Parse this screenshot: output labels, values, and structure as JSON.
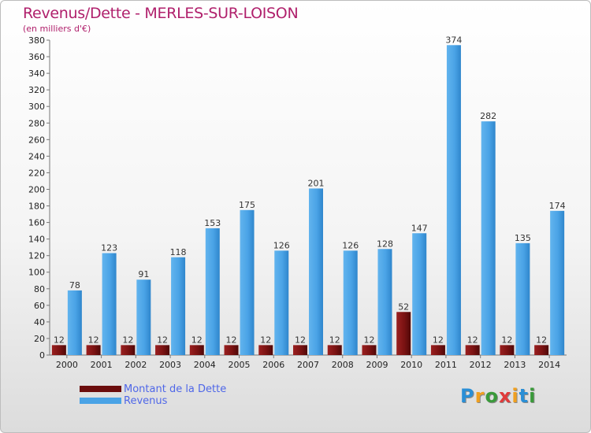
{
  "title": "Revenus/Dette - MERLES-SUR-LOISON",
  "subtitle": "(en milliers d'€)",
  "colors": {
    "dette": "#7a1212",
    "revenus": "#4aa3e6",
    "title": "#b0206c",
    "legend_text": "#4f67e8"
  },
  "legend": [
    {
      "label": "Montant de la Dette",
      "color": "#6b0d0d"
    },
    {
      "label": "Revenus",
      "color": "#4aa3e6"
    }
  ],
  "logo": {
    "text": "Proxiti"
  },
  "chart_data": {
    "type": "bar",
    "title": "Revenus/Dette - MERLES-SUR-LOISON",
    "subtitle": "(en milliers d'€)",
    "categories": [
      "2000",
      "2001",
      "2002",
      "2003",
      "2004",
      "2005",
      "2006",
      "2007",
      "2008",
      "2009",
      "2010",
      "2011",
      "2012",
      "2013",
      "2014"
    ],
    "series": [
      {
        "name": "Montant de la Dette",
        "values": [
          12,
          12,
          12,
          12,
          12,
          12,
          12,
          12,
          12,
          12,
          52,
          12,
          12,
          12,
          12
        ]
      },
      {
        "name": "Revenus",
        "values": [
          78,
          123,
          91,
          118,
          153,
          175,
          126,
          201,
          126,
          128,
          147,
          374,
          282,
          135,
          174
        ]
      }
    ],
    "ylim": [
      0,
      380
    ],
    "yticks": [
      0,
      20,
      40,
      60,
      80,
      100,
      120,
      140,
      160,
      180,
      200,
      220,
      240,
      260,
      280,
      300,
      320,
      340,
      360,
      380
    ],
    "grid": false,
    "legend_position": "bottom-left"
  }
}
